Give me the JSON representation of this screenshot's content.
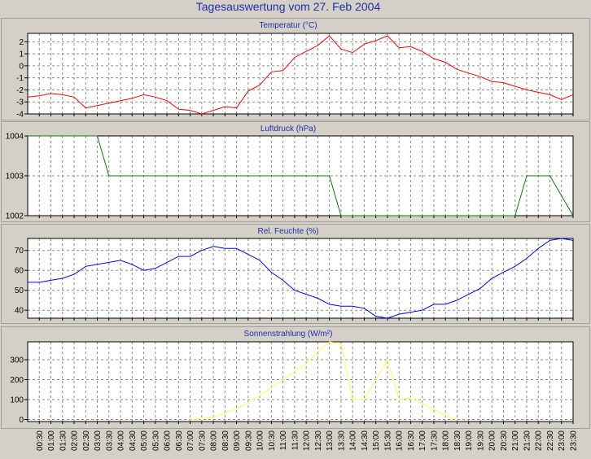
{
  "title": "Tagesauswertung vom 27. Feb 2004",
  "x_labels": [
    "00:30",
    "01:00",
    "01:30",
    "02:00",
    "02:30",
    "03:00",
    "03:30",
    "04:00",
    "04:30",
    "05:00",
    "05:30",
    "06:00",
    "06:30",
    "07:00",
    "07:30",
    "08:00",
    "08:30",
    "09:00",
    "09:30",
    "10:00",
    "10:30",
    "11:00",
    "11:30",
    "12:00",
    "12:30",
    "13:00",
    "13:30",
    "14:00",
    "14:30",
    "15:00",
    "15:30",
    "16:00",
    "16:30",
    "17:00",
    "17:30",
    "18:00",
    "18:30",
    "19:00",
    "19:30",
    "20:00",
    "20:30",
    "21:00",
    "21:30",
    "22:00",
    "22:30",
    "23:00",
    "23:30"
  ],
  "chart_data": [
    {
      "type": "line",
      "title": "Temperatur (°C)",
      "color": "#ff0000",
      "ylim": [
        -4,
        2.7
      ],
      "yticks": [
        -4,
        -3,
        -2,
        -1,
        0,
        1,
        2
      ],
      "ytick_labels": [
        "-4",
        "-3",
        "-2",
        "-1",
        "0",
        "1",
        "2"
      ],
      "x": [
        "00:00",
        "00:30",
        "01:00",
        "01:30",
        "02:00",
        "02:30",
        "03:00",
        "03:30",
        "04:00",
        "04:30",
        "05:00",
        "05:30",
        "06:00",
        "06:30",
        "07:00",
        "07:30",
        "08:00",
        "08:30",
        "09:00",
        "09:30",
        "10:00",
        "10:30",
        "11:00",
        "11:30",
        "12:00",
        "12:30",
        "13:00",
        "13:30",
        "14:00",
        "14:30",
        "15:00",
        "15:30",
        "16:00",
        "16:30",
        "17:00",
        "17:30",
        "18:00",
        "18:30",
        "19:00",
        "19:30",
        "20:00",
        "20:30",
        "21:00",
        "21:30",
        "22:00",
        "22:30",
        "23:00",
        "23:30"
      ],
      "values": [
        -2.6,
        -2.5,
        -2.3,
        -2.4,
        -2.6,
        -3.5,
        -3.3,
        -3.1,
        -2.9,
        -2.7,
        -2.4,
        -2.6,
        -2.9,
        -3.6,
        -3.7,
        -4.0,
        -3.7,
        -3.4,
        -3.5,
        -2.1,
        -1.6,
        -0.5,
        -0.4,
        0.7,
        1.2,
        1.7,
        2.5,
        1.4,
        1.1,
        1.8,
        2.1,
        2.5,
        1.5,
        1.6,
        1.2,
        0.6,
        0.3,
        -0.3,
        -0.6,
        -0.9,
        -1.3,
        -1.4,
        -1.7,
        -2.0,
        -2.2,
        -2.4,
        -2.8,
        -2.4
      ]
    },
    {
      "type": "line",
      "title": "Luftdruck (hPa)",
      "color": "#008000",
      "ylim": [
        1002,
        1004
      ],
      "yticks": [
        1002,
        1003,
        1004
      ],
      "ytick_labels": [
        "1002",
        "1003",
        "1004"
      ],
      "x": [
        "00:00",
        "03:00",
        "03:30",
        "13:00",
        "13:30",
        "21:00",
        "21:30",
        "22:30",
        "23:30"
      ],
      "values": [
        1004,
        1004,
        1003,
        1003,
        1002,
        1002,
        1003,
        1003,
        1002
      ]
    },
    {
      "type": "line",
      "title": "Rel. Feuchte (%)",
      "color": "#0000ff",
      "ylim": [
        36,
        76
      ],
      "yticks": [
        40,
        50,
        60,
        70
      ],
      "ytick_labels": [
        "40",
        "50",
        "60",
        "70"
      ],
      "x": [
        "00:00",
        "00:30",
        "01:00",
        "01:30",
        "02:00",
        "02:30",
        "03:00",
        "03:30",
        "04:00",
        "04:30",
        "05:00",
        "05:30",
        "06:00",
        "06:30",
        "07:00",
        "07:30",
        "08:00",
        "08:30",
        "09:00",
        "09:30",
        "10:00",
        "10:30",
        "11:00",
        "11:30",
        "12:00",
        "12:30",
        "13:00",
        "13:30",
        "14:00",
        "14:30",
        "15:00",
        "15:30",
        "16:00",
        "16:30",
        "17:00",
        "17:30",
        "18:00",
        "18:30",
        "19:00",
        "19:30",
        "20:00",
        "20:30",
        "21:00",
        "21:30",
        "22:00",
        "22:30",
        "23:00",
        "23:30"
      ],
      "values": [
        54,
        54,
        55,
        56,
        58,
        62,
        63,
        64,
        65,
        63,
        60,
        61,
        64,
        67,
        67,
        70,
        72,
        71,
        71,
        68,
        65,
        59,
        55,
        50,
        48,
        46,
        43,
        42,
        42,
        41,
        37,
        36,
        38,
        39,
        40,
        43,
        43,
        45,
        48,
        51,
        56,
        59,
        62,
        66,
        71,
        75,
        76,
        75
      ]
    },
    {
      "type": "line",
      "title": "Sonnenstrahlung (W/m²)",
      "color": "#ffff44",
      "ylim": [
        -10,
        390
      ],
      "yticks": [
        0,
        100,
        200,
        300
      ],
      "ytick_labels": [
        "0",
        "100",
        "200",
        "300"
      ],
      "x": [
        "07:00",
        "07:30",
        "08:00",
        "08:30",
        "09:00",
        "09:30",
        "10:00",
        "10:30",
        "11:00",
        "11:30",
        "12:00",
        "12:30",
        "13:00",
        "13:30",
        "14:00",
        "14:30",
        "15:00",
        "15:30",
        "16:00",
        "16:30",
        "17:00",
        "17:30",
        "18:00",
        "18:30"
      ],
      "values": [
        0,
        3,
        15,
        30,
        55,
        85,
        120,
        160,
        200,
        240,
        280,
        340,
        390,
        380,
        100,
        100,
        200,
        300,
        100,
        110,
        80,
        50,
        20,
        0
      ]
    }
  ]
}
